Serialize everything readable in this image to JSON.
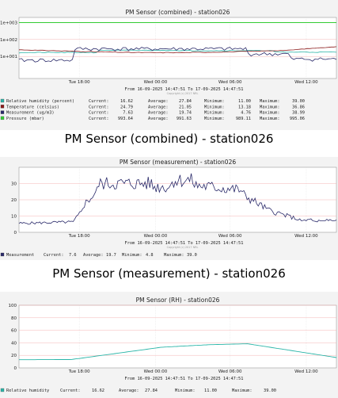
{
  "captions": [
    "PM Sensor (combined) - station026",
    "PM Sensor (measurement) - station026"
  ],
  "chart_data": [
    {
      "type": "line",
      "title": "PM Sensor (combined) - station026",
      "yscale": "log",
      "ylim": [
        0.5,
        2000
      ],
      "yticks": [
        "1e+001",
        "1e+002",
        "1e+003"
      ],
      "xticks": [
        "Tue 18:00",
        "Wed 00:00",
        "Wed 06:00",
        "Wed 12:00"
      ],
      "range_text": "From 16-09-2025 14:47:51 To 17-09-2025 14:47:51",
      "copyright": "Copyright (c) 2017 NRL",
      "colors": {
        "Relative humidity": "#2ab5a8",
        "Temperature": "#8b1a1a",
        "Measurement": "#2a2a6a",
        "Pressure": "#33cc33"
      },
      "legend": [
        {
          "name": "Relative humidity (percent)",
          "color": "#2ab5a8",
          "current_label": "Current:",
          "current": "16.62",
          "average_label": "Average:",
          "average": "27.84",
          "minimum_label": "Minimum:",
          "minimum": "11.00",
          "maximum_label": "Maximum:",
          "maximum": "39.00"
        },
        {
          "name": "Temperature (celsius)",
          "color": "#8b1a1a",
          "current_label": "Current:",
          "current": "24.79",
          "average_label": "Average:",
          "average": "21.05",
          "minimum_label": "Minimum:",
          "minimum": "13.18",
          "maximum_label": "Maximum:",
          "maximum": "36.86"
        },
        {
          "name": "Measurement (ug/m3)",
          "color": "#2a2a6a",
          "current_label": "Current:",
          "current": "7.63",
          "average_label": "Average:",
          "average": "19.74",
          "minimum_label": "Minimum:",
          "minimum": "4.76",
          "maximum_label": "Maximum:",
          "maximum": "38.99"
        },
        {
          "name": "Pressure (mbar)",
          "color": "#33cc33",
          "current_label": "Current:",
          "current": "993.64",
          "average_label": "Average:",
          "average": "991.63",
          "minimum_label": "Minimum:",
          "minimum": "989.11",
          "maximum_label": "Maximum:",
          "maximum": "995.06"
        }
      ]
    },
    {
      "type": "line",
      "title": "PM Sensor (measurement) - station026",
      "ylim": [
        0,
        40
      ],
      "yticks": [
        "0",
        "10",
        "20",
        "30"
      ],
      "xticks": [
        "Tue 18:00",
        "Wed 00:00",
        "Wed 06:00",
        "Wed 12:00"
      ],
      "range_text": "From 16-09-2025 14:47:51 To 17-09-2025 14:47:51",
      "copyright": "Copyright (c) 2017 NRL",
      "color": "#2a2a6a",
      "legend": {
        "name": "Measurement",
        "current_label": "Current:",
        "current": "7.6",
        "average_label": "Average:",
        "average": "19.7",
        "minimum_label": "Minimum:",
        "minimum": "4.8",
        "maximum_label": "Maximum:",
        "maximum": "39.0"
      }
    },
    {
      "type": "line",
      "title": "PM Sensor (RH) - station026",
      "ylim": [
        0,
        100
      ],
      "yticks": [
        "0",
        "20",
        "40",
        "60",
        "80",
        "100"
      ],
      "xticks": [
        "Tue 18:00",
        "Wed 00:00",
        "Wed 06:00",
        "Wed 12:00"
      ],
      "range_text": "From 16-09-2025 14:47:51 To 17-09-2025 14:47:51",
      "color": "#2ab5a8",
      "legend": {
        "name": "Relative humidity",
        "current_label": "Current:",
        "current": "16.62",
        "average_label": "Average:",
        "average": "27.84",
        "minimum_label": "Minimum:",
        "minimum": "11.00",
        "maximum_label": "Maximum:",
        "maximum": "39.00"
      }
    }
  ]
}
